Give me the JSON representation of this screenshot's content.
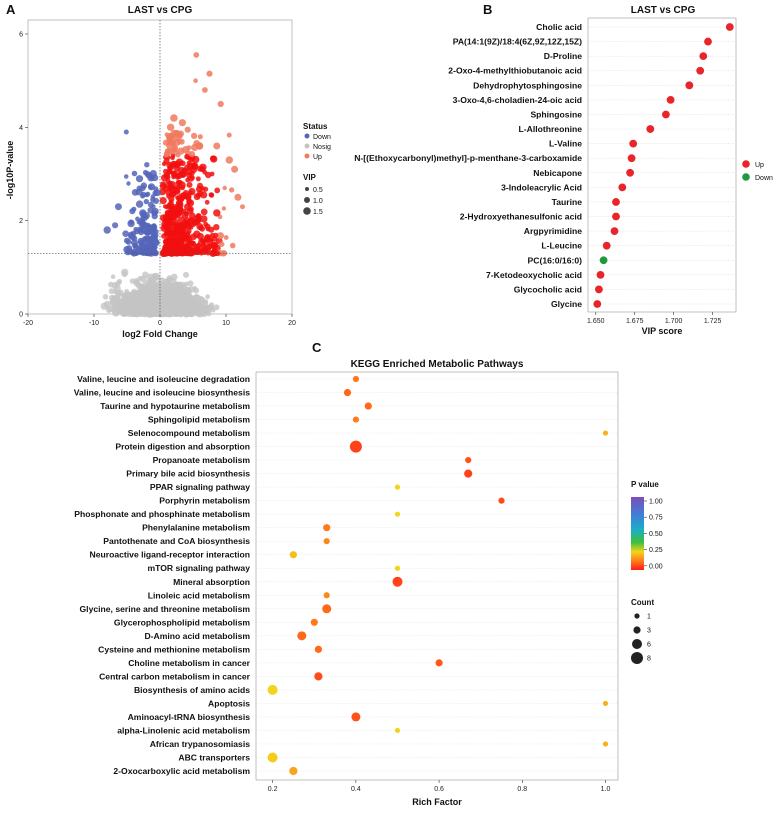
{
  "panels": {
    "a": "A",
    "b": "B",
    "c": "C"
  },
  "chart_data": [
    {
      "type": "scatter",
      "panel": "A",
      "title": "LAST vs CPG",
      "xlabel": "log2 Fold Change",
      "ylabel": "-log10P-value",
      "xlim": [
        -20,
        20
      ],
      "ylim": [
        0,
        6.3
      ],
      "xticks": [
        "-20",
        "-10",
        "0",
        "10",
        "20"
      ],
      "yticks": [
        "0",
        "2",
        "4",
        "6"
      ],
      "thresholds": {
        "x": 0,
        "y": 1.3
      },
      "colors": {
        "Down": "#5565b8",
        "Nosig": "#c4c4c4",
        "Up": "#f20f0f"
      },
      "legend": {
        "status_title": "Status",
        "status": [
          "Down",
          "Nosig",
          "Up"
        ],
        "vip_title": "VIP",
        "vip_sizes": [
          "0.5",
          "1.0",
          "1.5"
        ]
      },
      "highlight_points": [
        {
          "x": 5.5,
          "y": 5.55
        },
        {
          "x": 7.5,
          "y": 5.15
        },
        {
          "x": 5.4,
          "y": 5.0
        },
        {
          "x": 6.8,
          "y": 4.8
        },
        {
          "x": 9.2,
          "y": 4.5
        },
        {
          "x": -5.1,
          "y": 3.9
        },
        {
          "x": 2.1,
          "y": 4.2
        },
        {
          "x": 3.4,
          "y": 4.1
        },
        {
          "x": 4.2,
          "y": 3.95
        },
        {
          "x": 1.6,
          "y": 4.0
        },
        {
          "x": 10.5,
          "y": 3.3
        },
        {
          "x": 11.3,
          "y": 3.1
        },
        {
          "x": 11.8,
          "y": 2.5
        },
        {
          "x": 12.5,
          "y": 2.3
        },
        {
          "x": 9.8,
          "y": 2.7
        },
        {
          "x": 8.6,
          "y": 3.6
        },
        {
          "x": -8.0,
          "y": 1.8
        },
        {
          "x": -6.3,
          "y": 2.3
        },
        {
          "x": -4.2,
          "y": 2.2
        },
        {
          "x": -6.8,
          "y": 1.9
        },
        {
          "x": -3.1,
          "y": 2.9
        },
        {
          "x": -2.0,
          "y": 3.2
        },
        {
          "x": 6.0,
          "y": 3.6
        },
        {
          "x": 7.9,
          "y": 3.0
        }
      ]
    },
    {
      "type": "scatter",
      "panel": "B",
      "title": "LAST vs CPG",
      "xlabel": "VIP score",
      "xlim": [
        1.645,
        1.74
      ],
      "xticks": [
        1.65,
        1.675,
        1.7,
        1.725
      ],
      "xtick_labels": [
        "1.650",
        "1.675",
        "1.700",
        "1.725"
      ],
      "colors": {
        "Up": "#e8252b",
        "Down": "#1e9a3e"
      },
      "legend": [
        "Up",
        "Down"
      ],
      "categories": [
        "Cholic acid",
        "PA(14:1(9Z)/18:4(6Z,9Z,12Z,15Z)",
        "D-Proline",
        "2-Oxo-4-methylthiobutanoic acid",
        "Dehydrophytosphingosine",
        "3-Oxo-4,6-choladien-24-oic acid",
        "Sphingosine",
        "L-Allothreonine",
        "L-Valine",
        "N-[(Ethoxycarbonyl)methyl]-p-menthane-3-carboxamide",
        "Nebicapone",
        "3-Indoleacrylic Acid",
        "Taurine",
        "2-Hydroxyethanesulfonic acid",
        "Argpyrimidine",
        "L-Leucine",
        "PC(16:0/16:0)",
        "7-Ketodeoxycholic acid",
        "Glycocholic acid",
        "Glycine"
      ],
      "values": [
        1.736,
        1.722,
        1.719,
        1.717,
        1.71,
        1.698,
        1.695,
        1.685,
        1.674,
        1.673,
        1.672,
        1.667,
        1.663,
        1.663,
        1.662,
        1.657,
        1.655,
        1.653,
        1.652,
        1.651
      ],
      "status": [
        "Up",
        "Up",
        "Up",
        "Up",
        "Up",
        "Up",
        "Up",
        "Up",
        "Up",
        "Up",
        "Up",
        "Up",
        "Up",
        "Up",
        "Up",
        "Up",
        "Down",
        "Up",
        "Up",
        "Up"
      ]
    },
    {
      "type": "scatter",
      "panel": "C",
      "title": "KEGG Enriched Metabolic Pathways",
      "xlabel": "Rich Factor",
      "xlim": [
        0.16,
        1.03
      ],
      "xticks": [
        0.2,
        0.4,
        0.6,
        0.8,
        1.0
      ],
      "xtick_labels": [
        "0.2",
        "0.4",
        "0.6",
        "0.8",
        "1.0"
      ],
      "categories": [
        "Valine, leucine and isoleucine degradation",
        "Valine, leucine and isoleucine biosynthesis",
        "Taurine and hypotaurine metabolism",
        "Sphingolipid metabolism",
        "Selenocompound metabolism",
        "Protein digestion and absorption",
        "Propanoate metabolism",
        "Primary bile acid biosynthesis",
        "PPAR signaling pathway",
        "Porphyrin metabolism",
        "Phosphonate and phosphinate metabolism",
        "Phenylalanine metabolism",
        "Pantothenate and CoA biosynthesis",
        "Neuroactive ligand-receptor interaction",
        "mTOR signaling pathway",
        "Mineral absorption",
        "Linoleic acid metabolism",
        "Glycine, serine and threonine metabolism",
        "Glycerophospholipid metabolism",
        "D-Amino acid metabolism",
        "Cysteine and methionine metabolism",
        "Choline metabolism in cancer",
        "Central carbon metabolism in cancer",
        "Biosynthesis of amino acids",
        "Apoptosis",
        "Aminoacyl-tRNA biosynthesis",
        "alpha-Linolenic acid metabolism",
        "African trypanosomiasis",
        "ABC transporters",
        "2-Oxocarboxylic acid metabolism"
      ],
      "rich_factor": [
        0.4,
        0.38,
        0.43,
        0.4,
        1.0,
        0.4,
        0.67,
        0.67,
        0.5,
        0.75,
        0.5,
        0.33,
        0.33,
        0.25,
        0.5,
        0.5,
        0.33,
        0.33,
        0.3,
        0.27,
        0.31,
        0.6,
        0.31,
        0.2,
        1.0,
        0.4,
        0.5,
        1.0,
        0.2,
        0.25
      ],
      "count": [
        2,
        3,
        3,
        2,
        1,
        8,
        2,
        4,
        1,
        2,
        1,
        3,
        2,
        3,
        1,
        6,
        2,
        5,
        3,
        5,
        3,
        3,
        4,
        6,
        1,
        5,
        1,
        1,
        6,
        4
      ],
      "p_value": [
        0.12,
        0.1,
        0.1,
        0.12,
        0.2,
        0.05,
        0.07,
        0.05,
        0.25,
        0.06,
        0.25,
        0.12,
        0.14,
        0.22,
        0.25,
        0.05,
        0.14,
        0.1,
        0.12,
        0.1,
        0.1,
        0.08,
        0.06,
        0.25,
        0.2,
        0.07,
        0.25,
        0.2,
        0.24,
        0.18
      ],
      "legend": {
        "pvalue_title": "P value",
        "pvalue_range": [
          0,
          1
        ],
        "pvalue_ticks": [
          "1.00",
          "0.75",
          "0.50",
          "0.25",
          "0.00"
        ],
        "count_title": "Count",
        "count_ticks": [
          "1",
          "3",
          "6",
          "8"
        ]
      }
    }
  ]
}
